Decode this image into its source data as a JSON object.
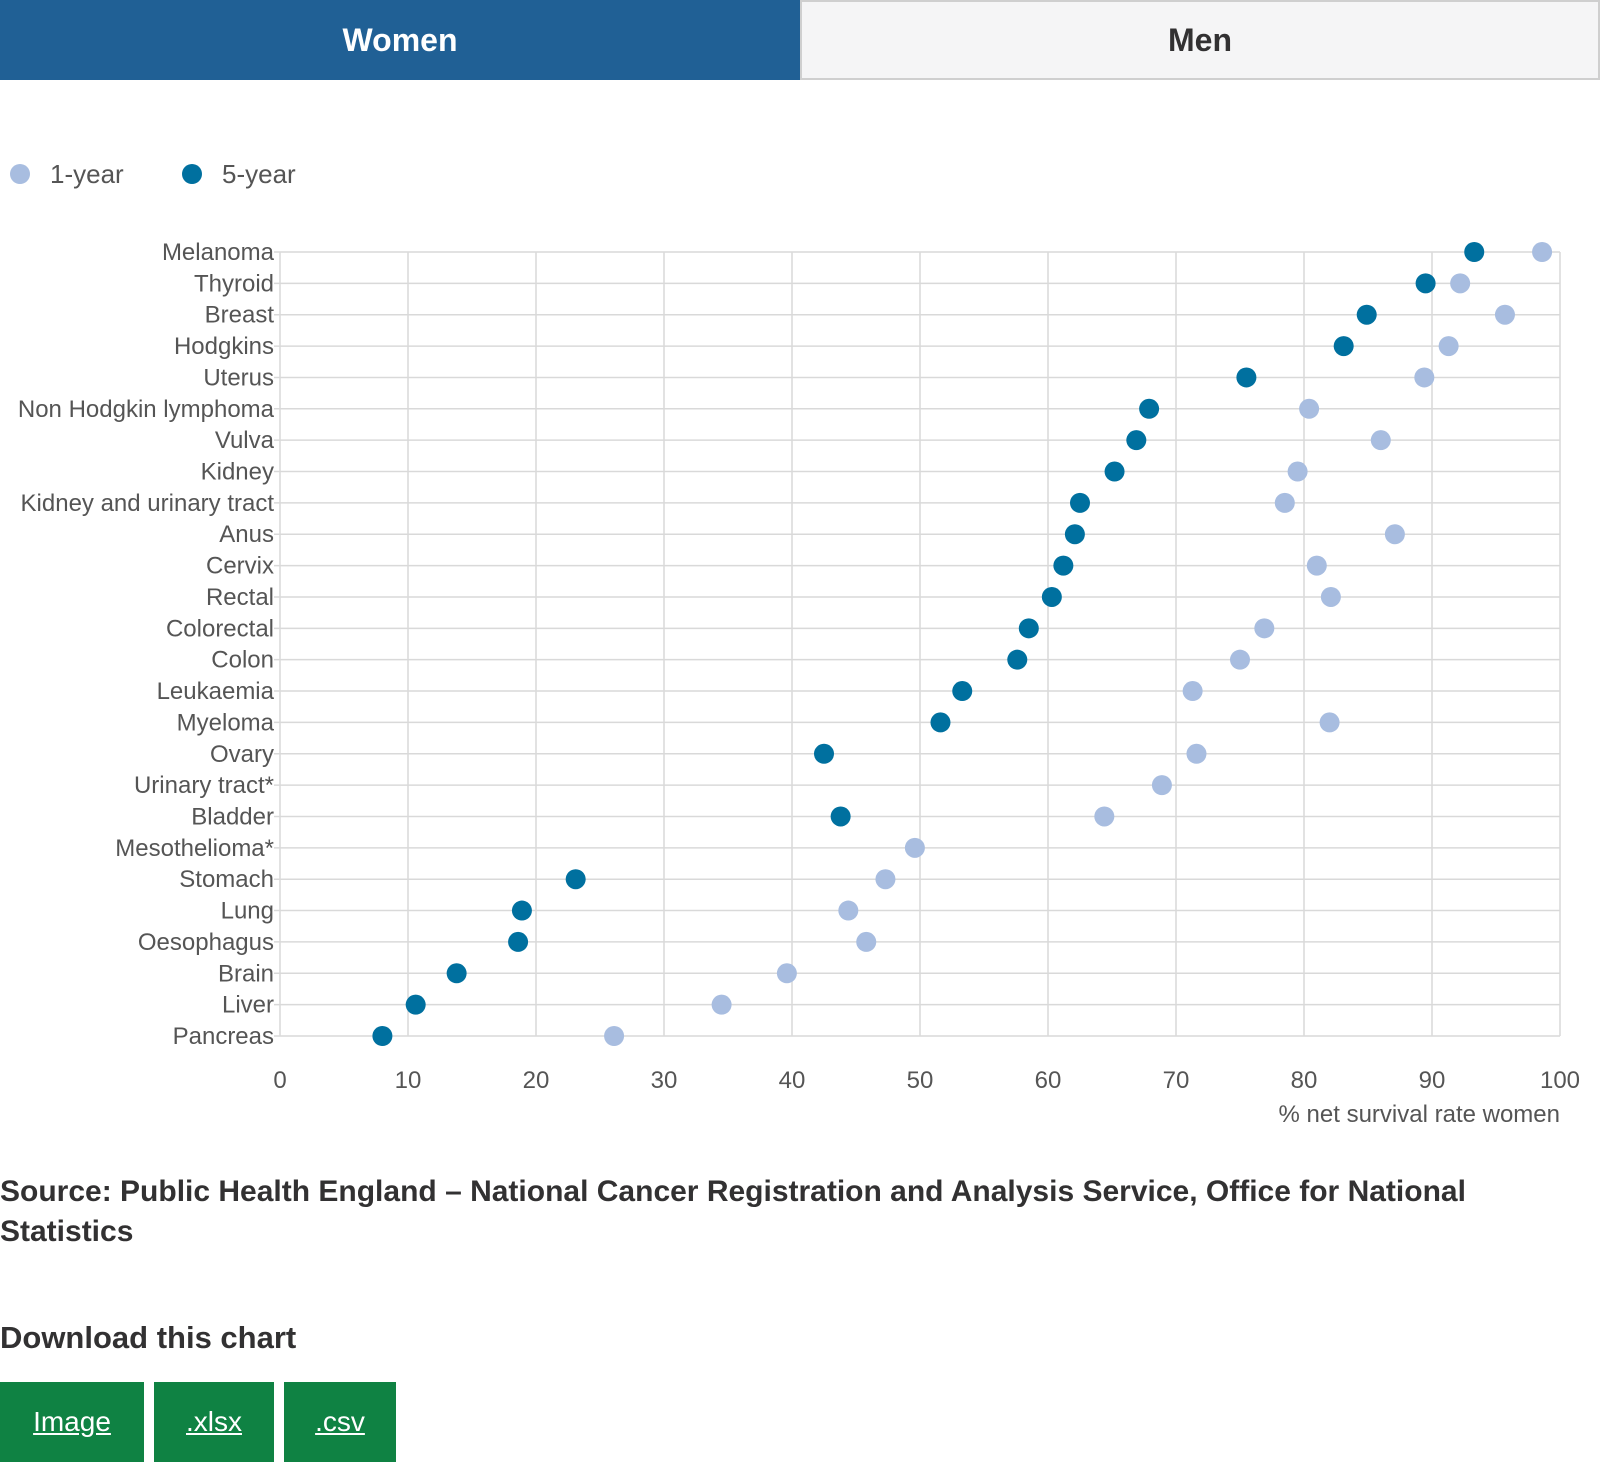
{
  "tabs": [
    {
      "label": "Women",
      "active": true
    },
    {
      "label": "Men",
      "active": false
    }
  ],
  "colors": {
    "one_year": "#a8bde0",
    "five_year": "#00709f",
    "tab_active": "#206095",
    "button": "#0f8243",
    "grid": "#d9d9d9"
  },
  "chart_data": {
    "type": "scatter",
    "orientation": "horizontal-dot-plot",
    "xlabel": "% net survival rate women",
    "xlim": [
      0,
      100
    ],
    "xticks": [
      0,
      10,
      20,
      30,
      40,
      50,
      60,
      70,
      80,
      90,
      100
    ],
    "grid": true,
    "legend_position": "top-left",
    "categories": [
      "Melanoma",
      "Thyroid",
      "Breast",
      "Hodgkins",
      "Uterus",
      "Non Hodgkin lymphoma",
      "Vulva",
      "Kidney",
      "Kidney and urinary tract",
      "Anus",
      "Cervix",
      "Rectal",
      "Colorectal",
      "Colon",
      "Leukaemia",
      "Myeloma",
      "Ovary",
      "Urinary tract*",
      "Bladder",
      "Mesothelioma*",
      "Stomach",
      "Lung",
      "Oesophagus",
      "Brain",
      "Liver",
      "Pancreas"
    ],
    "series": [
      {
        "name": "1-year",
        "values": [
          98.6,
          92.2,
          95.7,
          91.3,
          89.4,
          80.4,
          86.0,
          79.5,
          78.5,
          87.1,
          81.0,
          82.1,
          76.9,
          75.0,
          71.3,
          82.0,
          71.6,
          68.9,
          64.4,
          49.6,
          47.3,
          44.4,
          45.8,
          39.6,
          34.5,
          26.1
        ]
      },
      {
        "name": "5-year",
        "values": [
          93.3,
          89.5,
          84.9,
          83.1,
          75.5,
          67.9,
          66.9,
          65.2,
          62.5,
          62.1,
          61.2,
          60.3,
          58.5,
          57.6,
          53.3,
          51.6,
          42.5,
          null,
          43.8,
          null,
          23.1,
          18.9,
          18.6,
          13.8,
          10.6,
          8.0
        ]
      }
    ]
  },
  "source_text": "Source: Public Health England – National Cancer Registration and Analysis Service, Office for National Statistics",
  "download": {
    "heading": "Download this chart",
    "buttons": [
      "Image",
      ".xlsx",
      ".csv"
    ]
  }
}
